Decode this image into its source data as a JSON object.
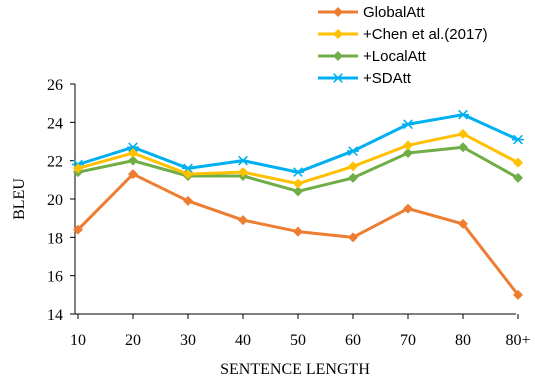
{
  "chart_data": {
    "type": "line",
    "title": "",
    "xlabel": "SENTENCE LENGTH",
    "ylabel": "BLEU",
    "categories": [
      "10",
      "20",
      "30",
      "40",
      "50",
      "60",
      "70",
      "80",
      "80+"
    ],
    "ylim": [
      14,
      26
    ],
    "yticks": [
      14,
      16,
      18,
      20,
      22,
      24,
      26
    ],
    "grid": false,
    "legend_position": "top-right",
    "series": [
      {
        "name": "GlobalAtt",
        "color": "#ED7D31",
        "marker": "diamond",
        "values": [
          18.4,
          21.3,
          19.9,
          18.9,
          18.3,
          18.0,
          19.5,
          18.7,
          15.0
        ]
      },
      {
        "name": "+Chen et al.(2017)",
        "color": "#FFC000",
        "marker": "diamond",
        "values": [
          21.6,
          22.4,
          21.3,
          21.4,
          20.8,
          21.7,
          22.8,
          23.4,
          21.9
        ]
      },
      {
        "name": "+LocalAtt",
        "color": "#70AD47",
        "marker": "diamond",
        "values": [
          21.4,
          22.0,
          21.2,
          21.2,
          20.4,
          21.1,
          22.4,
          22.7,
          21.1
        ]
      },
      {
        "name": "+SDAtt",
        "color": "#00B0F0",
        "marker": "asterisk",
        "values": [
          21.8,
          22.7,
          21.6,
          22.0,
          21.4,
          22.5,
          23.9,
          24.4,
          23.1
        ]
      }
    ]
  }
}
